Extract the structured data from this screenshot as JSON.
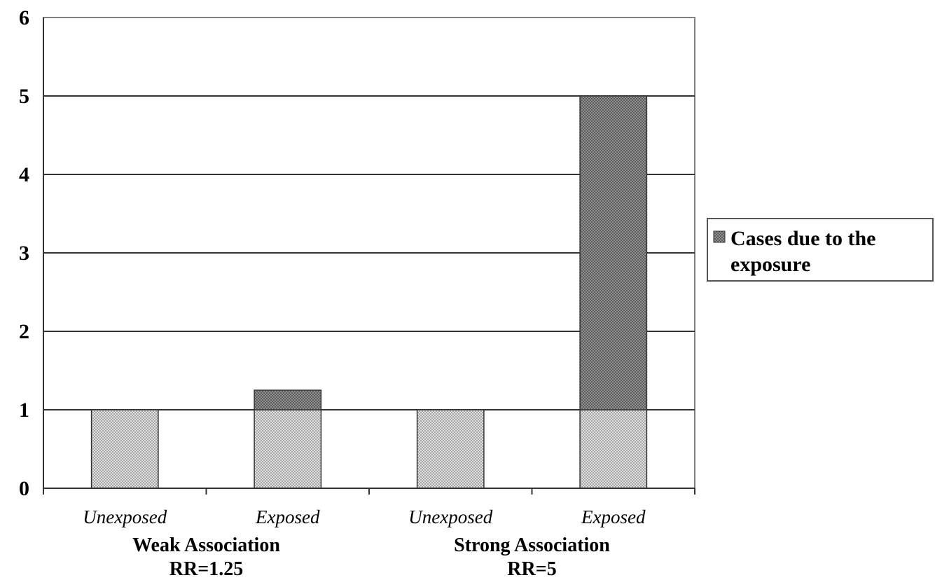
{
  "chart_data": {
    "type": "bar",
    "stacked": true,
    "categories": [
      "Unexposed",
      "Exposed",
      "Unexposed",
      "Exposed"
    ],
    "groups": [
      {
        "title": "Weak Association",
        "subtitle": "RR=1.25",
        "categories": [
          0,
          1
        ]
      },
      {
        "title": "Strong Association",
        "subtitle": "RR=5",
        "categories": [
          2,
          3
        ]
      }
    ],
    "series": [
      {
        "values": [
          1,
          1,
          1,
          1
        ],
        "color": "#c8c8c8"
      },
      {
        "name": "Cases due to the exposure",
        "values": [
          0,
          0.25,
          0,
          4
        ],
        "color": "#7a7a7a"
      }
    ],
    "ylim": [
      0,
      6
    ],
    "yticks": [
      0,
      1,
      2,
      3,
      4,
      5,
      6
    ],
    "grid": true,
    "legend": {
      "placement": "right",
      "lines": [
        "Cases due to the",
        "exposure"
      ]
    }
  }
}
